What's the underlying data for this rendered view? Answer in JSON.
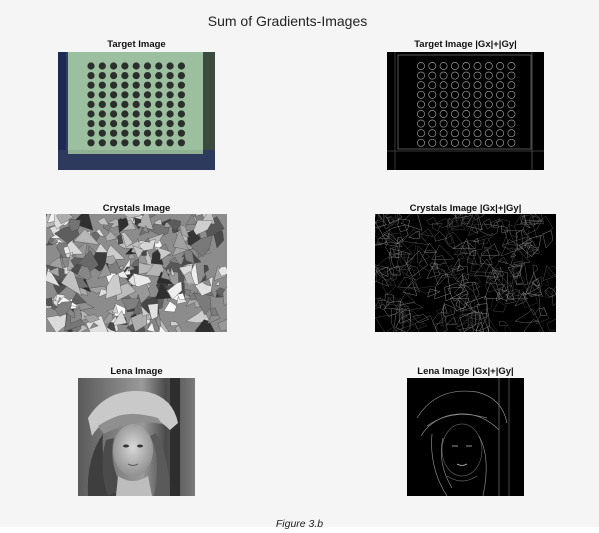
{
  "figure": {
    "title": "Sum of Gradients-Images",
    "caption": "Figure 3.b"
  },
  "panels": [
    {
      "title": "Target Image",
      "kind": "target-original"
    },
    {
      "title": "Target Image |Gx|+|Gy|",
      "kind": "target-gradient"
    },
    {
      "title": "Crystals Image",
      "kind": "crystals-original"
    },
    {
      "title": "Crystals Image |Gx|+|Gy|",
      "kind": "crystals-gradient"
    },
    {
      "title": "Lena Image",
      "kind": "lena-original"
    },
    {
      "title": "Lena Image |Gx|+|Gy|",
      "kind": "lena-gradient"
    }
  ],
  "colors": {
    "figure_background": "#f5f5f5",
    "target_board": "#9bbf9f",
    "target_side": "#2f3c6e",
    "gradient_background": "#000000"
  }
}
